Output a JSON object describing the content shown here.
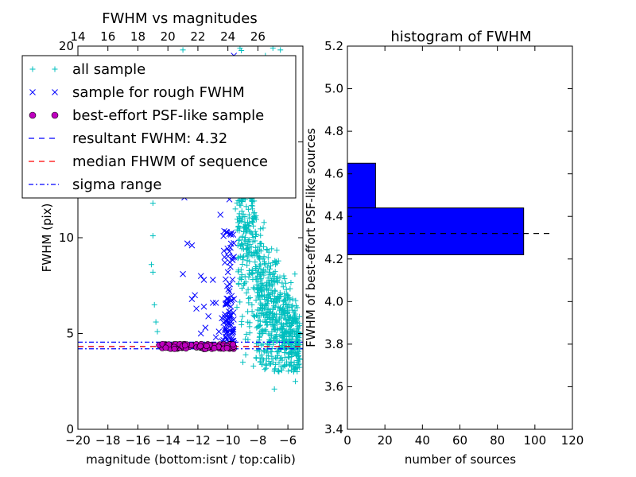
{
  "chart_data": [
    {
      "type": "scatter",
      "title": "FWHM vs magnitudes",
      "xlabel": "magnitude (bottom:isnt / top:calib)",
      "ylabel": "FWHM (pix)",
      "xlim": [
        -20,
        -5
      ],
      "ylim": [
        0,
        20
      ],
      "x_ticks": [
        -20,
        -18,
        -16,
        -14,
        -12,
        -10,
        -8,
        -6
      ],
      "x_tick_labels": [
        "−20",
        "−18",
        "−16",
        "−14",
        "−12",
        "−10",
        "−8",
        "−6"
      ],
      "y_ticks": [
        0,
        5,
        10,
        15,
        20
      ],
      "y_tick_labels": [
        "0",
        "5",
        "10",
        "15",
        "20"
      ],
      "top_ticks": [
        14,
        16,
        18,
        20,
        22,
        24,
        26
      ],
      "top_tick_labels": [
        "14",
        "16",
        "18",
        "20",
        "22",
        "24",
        "26"
      ],
      "top_axis_offset": 34,
      "grid": false,
      "legend_position": "upper-left",
      "legend": [
        {
          "label": "all sample",
          "marker": "plus",
          "color": "#00bfbf"
        },
        {
          "label": "sample for rough FWHM",
          "marker": "x",
          "color": "#0000ff"
        },
        {
          "label": "best-effort PSF-like sample",
          "marker": "circle",
          "color": "#bf00bf"
        },
        {
          "label": "resultant FWHM: 4.32",
          "linestyle": "dashed",
          "color": "#0000ff"
        },
        {
          "label": "median FHWM of sequence",
          "linestyle": "dashed",
          "color": "#ff0000"
        },
        {
          "label": "sigma range",
          "linestyle": "dashdot",
          "color": "#0000ff"
        }
      ],
      "series": [
        {
          "marker": "plus",
          "color": "#00bfbf",
          "points": [
            [
              -14.9,
              15.8
            ],
            [
              -14.8,
              14.8
            ],
            [
              -15.0,
              11.8
            ],
            [
              -15.0,
              10.1
            ],
            [
              -15.1,
              8.6
            ],
            [
              -15.0,
              8.2
            ],
            [
              -14.9,
              6.5
            ],
            [
              -14.8,
              5.6
            ],
            [
              -14.7,
              5.1
            ],
            [
              -13.2,
              15.8
            ],
            [
              -13.0,
              19.8
            ],
            [
              -12.6,
              18.2
            ],
            [
              -9.6,
              13.6
            ],
            [
              -9.4,
              12.8
            ],
            [
              -9.2,
              10.5
            ],
            [
              -9.5,
              11.5
            ],
            [
              -7.0,
              19.9
            ],
            [
              -6.5,
              19.8
            ],
            [
              -7.5,
              19.5
            ],
            [
              -6.9,
              2.1
            ],
            [
              -5.5,
              2.5
            ],
            [
              -5.8,
              3.5
            ],
            [
              -6.2,
              3.3
            ],
            [
              -6.6,
              3.0
            ],
            [
              -7.2,
              3.4
            ],
            [
              -8.3,
              3.3
            ],
            [
              -9.0,
              3.5
            ],
            [
              -10.5,
              4.3
            ],
            [
              -11.8,
              4.3
            ],
            [
              -13.5,
              4.3
            ],
            [
              -5.3,
              4.4
            ],
            [
              -5.6,
              6.1
            ],
            [
              -6.0,
              7.0
            ],
            [
              -8.5,
              14.2
            ],
            [
              -7.8,
              15.6
            ],
            [
              -8.9,
              17.2
            ]
          ],
          "cloud": {
            "x_range": [
              -9.4,
              -5.2
            ],
            "y_min": 3.0,
            "y_peak": 8.6,
            "y_spread": 2.4,
            "count": 900
          }
        },
        {
          "marker": "x",
          "color": "#0000ff",
          "points": [
            [
              -13.9,
              12.4
            ],
            [
              -12.9,
              12.1
            ],
            [
              -12.7,
              9.7
            ],
            [
              -12.4,
              9.6
            ],
            [
              -13.0,
              8.1
            ],
            [
              -12.2,
              7.0
            ],
            [
              -12.4,
              6.8
            ],
            [
              -11.8,
              8.0
            ],
            [
              -11.6,
              7.8
            ],
            [
              -12.1,
              6.3
            ],
            [
              -11.6,
              6.4
            ],
            [
              -11.0,
              6.6
            ],
            [
              -11.0,
              7.8
            ],
            [
              -11.3,
              5.9
            ],
            [
              -11.5,
              5.3
            ],
            [
              -11.8,
              5.0
            ],
            [
              -10.6,
              5.1
            ],
            [
              -10.8,
              6.6
            ],
            [
              -10.8,
              4.8
            ],
            [
              -10.4,
              5.8
            ],
            [
              -10.2,
              8.7
            ],
            [
              -10.0,
              8.2
            ],
            [
              -9.6,
              9.0
            ],
            [
              -10.1,
              10.3
            ],
            [
              -9.9,
              12.0
            ],
            [
              -9.5,
              13.0
            ],
            [
              -10.3,
              15.9
            ],
            [
              -10.6,
              14.9
            ],
            [
              -10.2,
              17.2
            ],
            [
              -10.0,
              16.6
            ],
            [
              -9.7,
              18.6
            ],
            [
              -9.6,
              19.5
            ],
            [
              -9.6,
              16.1
            ],
            [
              -10.5,
              11.2
            ],
            [
              -9.8,
              6.4
            ],
            [
              -10.0,
              5.8
            ],
            [
              -9.7,
              5.0
            ],
            [
              -9.6,
              4.5
            ],
            [
              -10.4,
              4.6
            ],
            [
              -9.9,
              7.2
            ],
            [
              -9.6,
              6.8
            ],
            [
              -10.2,
              6.0
            ]
          ],
          "cloud": {
            "x_range": [
              -10.3,
              -9.6
            ],
            "y_min": 4.5,
            "y_max": 10.5,
            "count": 80
          }
        },
        {
          "marker": "circle",
          "color": "#bf00bf",
          "y_value": 4.32,
          "y_jitter": 0.13,
          "x_range": [
            -14.6,
            -9.6
          ],
          "count": 110
        }
      ],
      "reference_lines": [
        {
          "name": "resultant FWHM",
          "y": 4.32,
          "style": "dashed",
          "color": "#0000ff"
        },
        {
          "name": "median FHWM of sequence",
          "y": 4.32,
          "style": "dashed",
          "color": "#ff0000"
        },
        {
          "name": "sigma upper",
          "y": 4.55,
          "style": "dashdot",
          "color": "#0000ff"
        },
        {
          "name": "sigma lower",
          "y": 4.2,
          "style": "dashdot",
          "color": "#0000ff"
        }
      ]
    },
    {
      "type": "bar",
      "orientation": "horizontal",
      "title": "histogram of FWHM",
      "xlabel": "number of sources",
      "ylabel": "FWHM of best-effort PSF-like sources",
      "xlim": [
        0,
        120
      ],
      "ylim": [
        3.4,
        5.2
      ],
      "x_ticks": [
        0,
        20,
        40,
        60,
        80,
        100,
        120
      ],
      "y_ticks": [
        3.4,
        3.6,
        3.8,
        4.0,
        4.2,
        4.4,
        4.6,
        4.8,
        5.0,
        5.2
      ],
      "y_tick_labels": [
        "3.4",
        "3.6",
        "3.8",
        "4.0",
        "4.2",
        "4.4",
        "4.6",
        "4.8",
        "5.0",
        "5.2"
      ],
      "bars": [
        {
          "y_low": 4.22,
          "y_high": 4.44,
          "value": 94
        },
        {
          "y_low": 4.44,
          "y_high": 4.65,
          "value": 15
        }
      ],
      "bar_color": "#0000ff",
      "reference_line": {
        "y": 4.32,
        "x_range": [
          0,
          110
        ],
        "style": "dashed",
        "color": "#000000"
      }
    }
  ]
}
